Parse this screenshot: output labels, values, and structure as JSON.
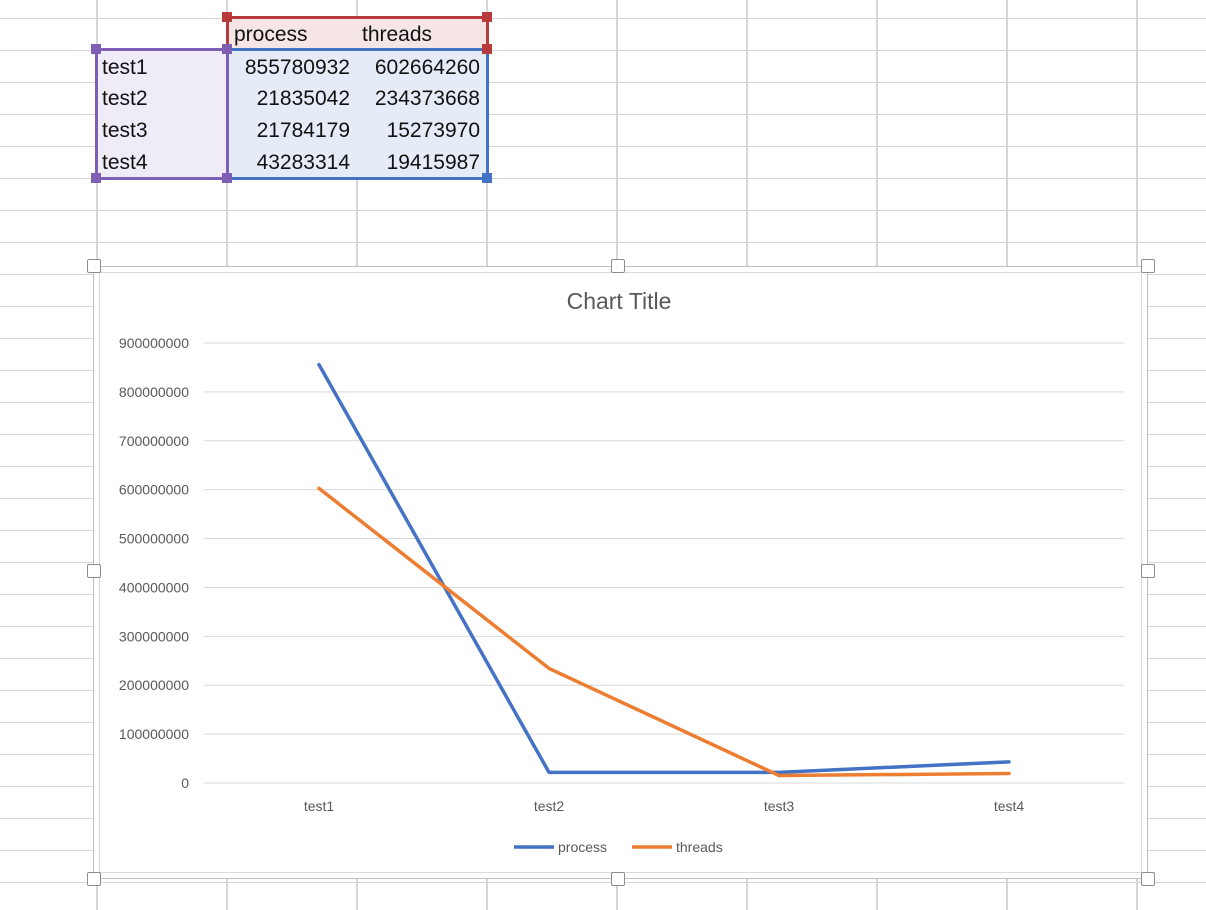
{
  "sheet": {
    "headers": [
      "process",
      "threads"
    ],
    "rows": [
      {
        "label": "test1",
        "process": "855780932",
        "threads": "602664260"
      },
      {
        "label": "test2",
        "process": "21835042",
        "threads": "234373668"
      },
      {
        "label": "test3",
        "process": "21784179",
        "threads": "15273970"
      },
      {
        "label": "test4",
        "process": "43283314",
        "threads": "19415987"
      }
    ]
  },
  "colors": {
    "process": "#4472c4",
    "threads": "#ed7d31",
    "header_range": "#b83b3b",
    "label_range": "#7f5fb5",
    "value_range": "#4472c4"
  },
  "chart_data": {
    "type": "line",
    "title": "Chart Title",
    "categories": [
      "test1",
      "test2",
      "test3",
      "test4"
    ],
    "series": [
      {
        "name": "process",
        "values": [
          855780932,
          21835042,
          21784179,
          43283314
        ]
      },
      {
        "name": "threads",
        "values": [
          602664260,
          234373668,
          15273970,
          19415987
        ]
      }
    ],
    "ylim": [
      0,
      900000000
    ],
    "yticks": [
      "0",
      "100000000",
      "200000000",
      "300000000",
      "400000000",
      "500000000",
      "600000000",
      "700000000",
      "800000000",
      "900000000"
    ],
    "grid": true,
    "legend": "bottom"
  }
}
